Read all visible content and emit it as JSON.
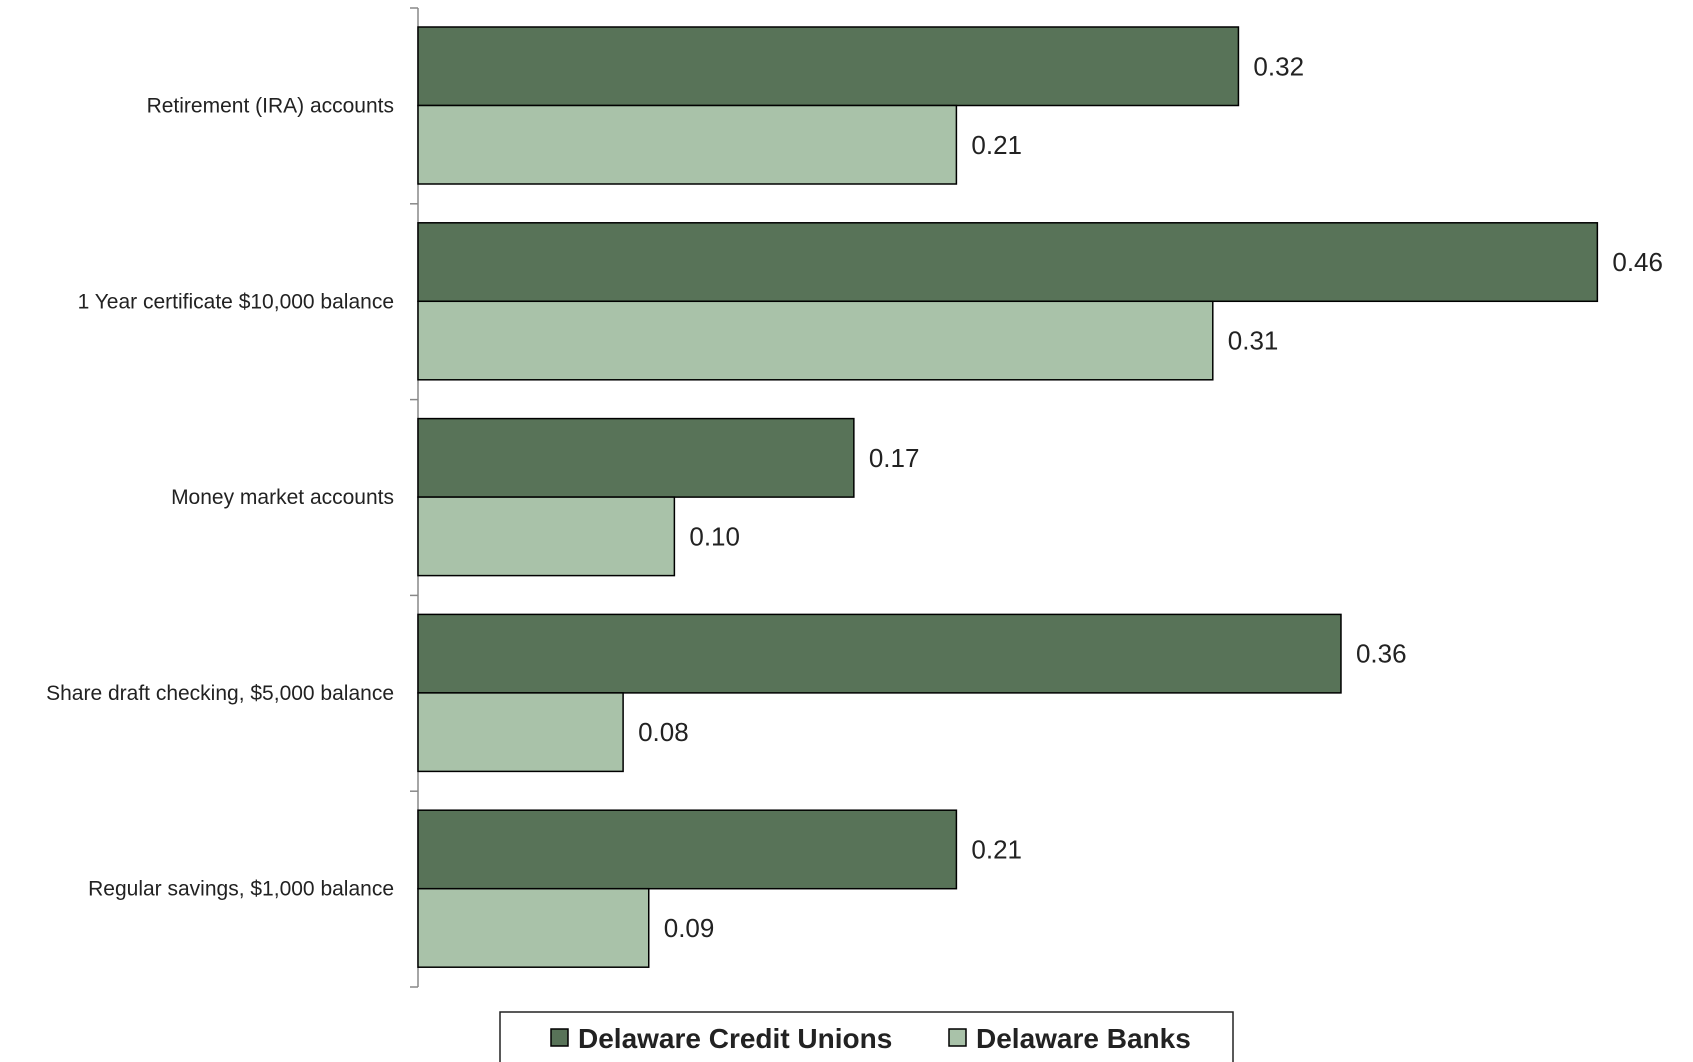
{
  "chart_data": {
    "type": "bar",
    "orientation": "horizontal",
    "categories": [
      "Retirement (IRA) accounts",
      "1 Year certificate $10,000 balance",
      "Money market accounts",
      "Share draft checking, $5,000 balance",
      "Regular savings, $1,000 balance"
    ],
    "series": [
      {
        "name": "Delaware Credit Unions",
        "color": "#587358",
        "values": [
          0.32,
          0.46,
          0.17,
          0.36,
          0.21
        ],
        "labels": [
          "0.32",
          "0.46",
          "0.17",
          "0.36",
          "0.21"
        ]
      },
      {
        "name": "Delaware Banks",
        "color": "#a9c2a9",
        "values": [
          0.21,
          0.31,
          0.1,
          0.08,
          0.09
        ],
        "labels": [
          "0.21",
          "0.31",
          "0.10",
          "0.08",
          "0.09"
        ]
      }
    ],
    "xlim": [
      0,
      0.47
    ],
    "grid": false,
    "legend_position": "bottom",
    "title": "",
    "xlabel": "",
    "ylabel": ""
  }
}
